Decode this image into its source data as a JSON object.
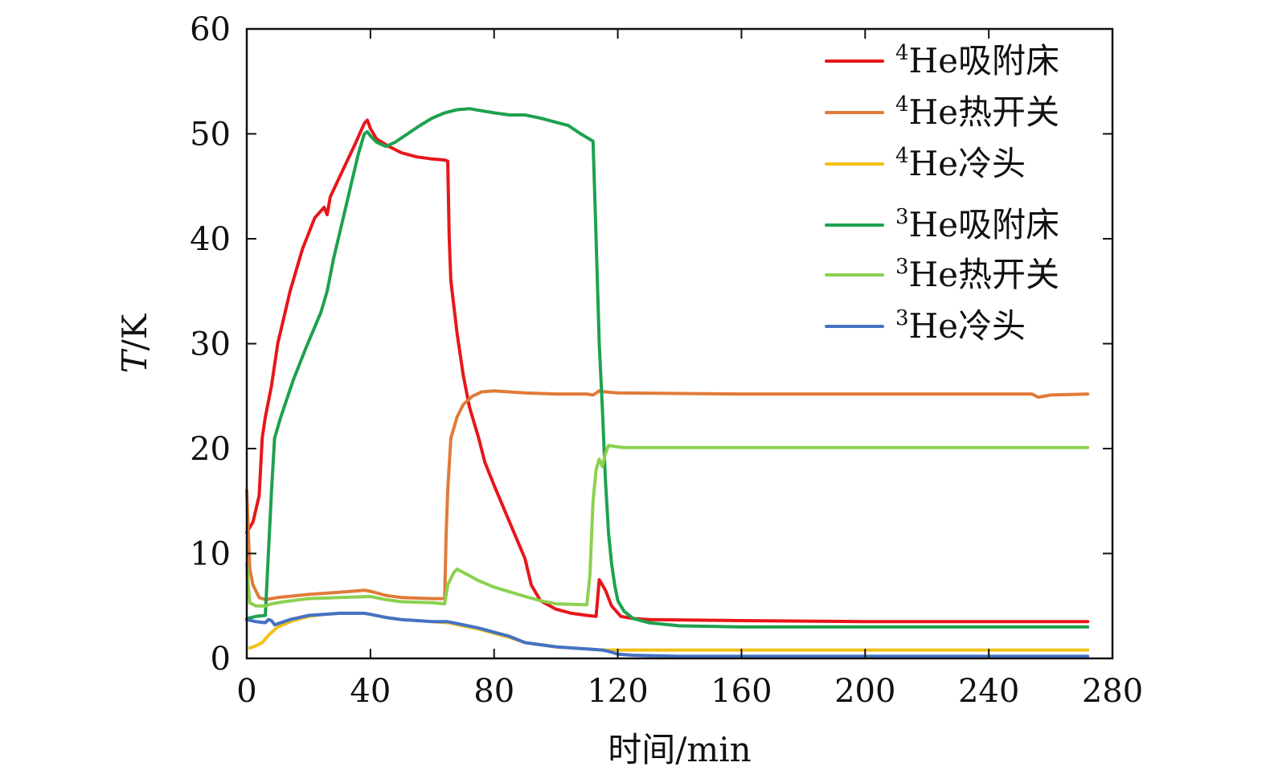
{
  "chart_data": {
    "type": "line",
    "title": "",
    "xlabel": "时间/min",
    "ylabel": "T/K",
    "ylabel_italic_part": "T",
    "ylabel_rest": "/K",
    "xlim": [
      0,
      280
    ],
    "ylim": [
      0,
      60
    ],
    "xticks": [
      0,
      40,
      80,
      120,
      160,
      200,
      240,
      280
    ],
    "yticks": [
      0,
      10,
      20,
      30,
      40,
      50,
      60
    ],
    "grid": false,
    "legend_position": "top-right",
    "series": [
      {
        "name": "4He吸附床",
        "sup": "4",
        "label": "He吸附床",
        "color": "#e8161b",
        "points": [
          [
            0,
            12
          ],
          [
            2,
            13
          ],
          [
            4,
            15.5
          ],
          [
            5,
            21
          ],
          [
            6,
            23
          ],
          [
            8,
            26
          ],
          [
            10,
            30
          ],
          [
            14,
            35
          ],
          [
            18,
            39
          ],
          [
            22,
            42
          ],
          [
            25,
            43
          ],
          [
            26,
            42.3
          ],
          [
            27,
            44
          ],
          [
            31,
            46.5
          ],
          [
            35,
            49
          ],
          [
            38,
            51
          ],
          [
            39,
            51.3
          ],
          [
            40,
            50.5
          ],
          [
            42,
            49.5
          ],
          [
            46,
            48.8
          ],
          [
            50,
            48.2
          ],
          [
            55,
            47.8
          ],
          [
            60,
            47.6
          ],
          [
            64,
            47.5
          ],
          [
            65,
            47.4
          ],
          [
            65.5,
            40
          ],
          [
            66,
            36
          ],
          [
            68,
            31
          ],
          [
            70,
            27
          ],
          [
            72,
            24
          ],
          [
            75,
            21
          ],
          [
            77,
            18.7
          ],
          [
            80,
            16.5
          ],
          [
            85,
            13
          ],
          [
            90,
            9.5
          ],
          [
            92,
            7
          ],
          [
            95,
            5.5
          ],
          [
            100,
            4.7
          ],
          [
            105,
            4.3
          ],
          [
            110,
            4.1
          ],
          [
            113,
            4
          ],
          [
            114,
            7.5
          ],
          [
            116,
            6.5
          ],
          [
            118,
            5
          ],
          [
            121,
            4
          ],
          [
            125,
            3.8
          ],
          [
            130,
            3.7
          ],
          [
            160,
            3.6
          ],
          [
            200,
            3.5
          ],
          [
            240,
            3.5
          ],
          [
            272,
            3.5
          ]
        ]
      },
      {
        "name": "4He热开关",
        "sup": "4",
        "label": "He热开关",
        "color": "#e07b39",
        "points": [
          [
            0,
            16
          ],
          [
            0.5,
            12
          ],
          [
            1,
            8.5
          ],
          [
            2,
            7
          ],
          [
            4,
            5.8
          ],
          [
            6,
            5.6
          ],
          [
            10,
            5.8
          ],
          [
            20,
            6.1
          ],
          [
            30,
            6.3
          ],
          [
            38,
            6.5
          ],
          [
            40,
            6.4
          ],
          [
            45,
            6.0
          ],
          [
            50,
            5.8
          ],
          [
            60,
            5.7
          ],
          [
            64,
            5.7
          ],
          [
            64.5,
            12
          ],
          [
            65,
            16
          ],
          [
            66,
            21
          ],
          [
            68,
            23
          ],
          [
            70,
            24.2
          ],
          [
            73,
            25
          ],
          [
            76,
            25.4
          ],
          [
            80,
            25.5
          ],
          [
            85,
            25.4
          ],
          [
            90,
            25.3
          ],
          [
            100,
            25.2
          ],
          [
            110,
            25.2
          ],
          [
            112,
            25.1
          ],
          [
            114,
            25.5
          ],
          [
            116,
            25.4
          ],
          [
            120,
            25.3
          ],
          [
            160,
            25.2
          ],
          [
            200,
            25.2
          ],
          [
            240,
            25.2
          ],
          [
            254,
            25.2
          ],
          [
            256,
            24.9
          ],
          [
            260,
            25.1
          ],
          [
            272,
            25.2
          ]
        ]
      },
      {
        "name": "4He冷头",
        "sup": "4",
        "label": "He冷头",
        "color": "#f2c018",
        "points": [
          [
            1,
            1
          ],
          [
            3,
            1.2
          ],
          [
            5,
            1.5
          ],
          [
            7,
            2.2
          ],
          [
            10,
            3
          ],
          [
            15,
            3.6
          ],
          [
            20,
            4
          ],
          [
            25,
            4.2
          ],
          [
            30,
            4.3
          ],
          [
            38,
            4.3
          ],
          [
            40,
            4.2
          ],
          [
            45,
            3.9
          ],
          [
            50,
            3.7
          ],
          [
            60,
            3.5
          ],
          [
            65,
            3.4
          ],
          [
            70,
            3.1
          ],
          [
            75,
            2.8
          ],
          [
            80,
            2.4
          ],
          [
            85,
            2
          ],
          [
            90,
            1.5
          ],
          [
            95,
            1.3
          ],
          [
            100,
            1.1
          ],
          [
            110,
            0.9
          ],
          [
            115,
            0.8
          ],
          [
            120,
            0.8
          ],
          [
            160,
            0.8
          ],
          [
            200,
            0.8
          ],
          [
            240,
            0.8
          ],
          [
            272,
            0.8
          ]
        ]
      },
      {
        "name": "3He吸附床",
        "sup": "3",
        "label": "He吸附床",
        "color": "#1ea14f",
        "points": [
          [
            0,
            3.8
          ],
          [
            3,
            4
          ],
          [
            6,
            4.1
          ],
          [
            7,
            10
          ],
          [
            8,
            16
          ],
          [
            9,
            21
          ],
          [
            11,
            23
          ],
          [
            15,
            26.5
          ],
          [
            19,
            29.5
          ],
          [
            24,
            33
          ],
          [
            26,
            35
          ],
          [
            28,
            38
          ],
          [
            32,
            43
          ],
          [
            36,
            48
          ],
          [
            38,
            50
          ],
          [
            39,
            50.2
          ],
          [
            40,
            49.8
          ],
          [
            42,
            49.2
          ],
          [
            45,
            48.8
          ],
          [
            48,
            49.2
          ],
          [
            52,
            50
          ],
          [
            56,
            50.8
          ],
          [
            60,
            51.5
          ],
          [
            64,
            52
          ],
          [
            68,
            52.3
          ],
          [
            72,
            52.4
          ],
          [
            76,
            52.2
          ],
          [
            80,
            52
          ],
          [
            85,
            51.8
          ],
          [
            90,
            51.8
          ],
          [
            95,
            51.5
          ],
          [
            100,
            51.1
          ],
          [
            104,
            50.8
          ],
          [
            108,
            50
          ],
          [
            112,
            49.3
          ],
          [
            113,
            40
          ],
          [
            114,
            30
          ],
          [
            115,
            24
          ],
          [
            116,
            17
          ],
          [
            117,
            12
          ],
          [
            118,
            9
          ],
          [
            119,
            7
          ],
          [
            120,
            5.5
          ],
          [
            122,
            4.5
          ],
          [
            125,
            3.8
          ],
          [
            130,
            3.4
          ],
          [
            140,
            3.1
          ],
          [
            160,
            3
          ],
          [
            200,
            3
          ],
          [
            240,
            3
          ],
          [
            272,
            3
          ]
        ]
      },
      {
        "name": "3He热开关",
        "sup": "3",
        "label": "He热开关",
        "color": "#8bd14f",
        "points": [
          [
            0,
            9
          ],
          [
            0.5,
            7
          ],
          [
            1,
            5.3
          ],
          [
            3,
            5
          ],
          [
            6,
            5
          ],
          [
            8,
            5.2
          ],
          [
            12,
            5.4
          ],
          [
            20,
            5.7
          ],
          [
            30,
            5.8
          ],
          [
            40,
            5.9
          ],
          [
            45,
            5.6
          ],
          [
            50,
            5.4
          ],
          [
            60,
            5.3
          ],
          [
            64,
            5.2
          ],
          [
            65,
            7
          ],
          [
            67,
            8.2
          ],
          [
            68,
            8.5
          ],
          [
            70,
            8.2
          ],
          [
            75,
            7.4
          ],
          [
            80,
            6.8
          ],
          [
            90,
            5.9
          ],
          [
            95,
            5.5
          ],
          [
            100,
            5.2
          ],
          [
            110,
            5.1
          ],
          [
            111,
            8
          ],
          [
            112,
            15
          ],
          [
            113,
            18
          ],
          [
            114,
            19
          ],
          [
            115,
            18.3
          ],
          [
            116,
            19.5
          ],
          [
            117,
            20.3
          ],
          [
            119,
            20.2
          ],
          [
            122,
            20.1
          ],
          [
            160,
            20.1
          ],
          [
            200,
            20.1
          ],
          [
            240,
            20.1
          ],
          [
            272,
            20.1
          ]
        ]
      },
      {
        "name": "3He冷头",
        "sup": "3",
        "label": "He冷头",
        "color": "#4472c4",
        "points": [
          [
            0,
            3.7
          ],
          [
            3,
            3.5
          ],
          [
            6,
            3.4
          ],
          [
            7,
            3.7
          ],
          [
            8,
            3.6
          ],
          [
            9,
            3.2
          ],
          [
            10,
            3.3
          ],
          [
            14,
            3.7
          ],
          [
            20,
            4.1
          ],
          [
            25,
            4.2
          ],
          [
            30,
            4.3
          ],
          [
            38,
            4.3
          ],
          [
            40,
            4.2
          ],
          [
            45,
            3.9
          ],
          [
            50,
            3.7
          ],
          [
            60,
            3.5
          ],
          [
            65,
            3.5
          ],
          [
            70,
            3.2
          ],
          [
            75,
            2.9
          ],
          [
            80,
            2.5
          ],
          [
            85,
            2.1
          ],
          [
            90,
            1.5
          ],
          [
            95,
            1.3
          ],
          [
            100,
            1.1
          ],
          [
            105,
            1
          ],
          [
            110,
            0.9
          ],
          [
            115,
            0.8
          ],
          [
            118,
            0.6
          ],
          [
            120,
            0.4
          ],
          [
            125,
            0.3
          ],
          [
            140,
            0.2
          ],
          [
            200,
            0.2
          ],
          [
            272,
            0.2
          ]
        ]
      }
    ]
  }
}
